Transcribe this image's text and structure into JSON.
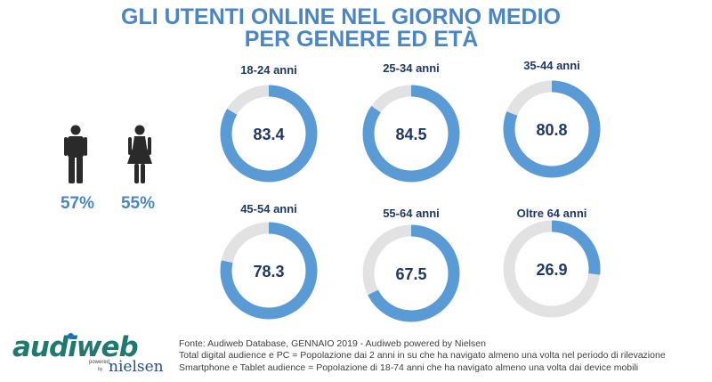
{
  "title_line1": "GLI UTENTI ONLINE NEL GIORNO MEDIO",
  "title_line2": "PER GENERE ED ETÀ",
  "genders": [
    {
      "icon": "male-person-icon",
      "value": "57%"
    },
    {
      "icon": "female-person-icon",
      "value": "55%"
    }
  ],
  "colors": {
    "accent": "#5b9bd5",
    "track": "#e2e2e2",
    "title": "#4a86c6",
    "label": "#1f3864",
    "figure": "#2a2a2a"
  },
  "chart_data": {
    "type": "donut",
    "max": 100,
    "categories": [
      "18-24 anni",
      "25-34 anni",
      "35-44 anni",
      "45-54 anni",
      "55-64 anni",
      "Oltre 64 anni"
    ],
    "values": [
      83.4,
      84.5,
      80.8,
      78.3,
      67.5,
      26.9
    ],
    "value_labels": [
      "83.4",
      "84.5",
      "80.8",
      "78.3",
      "67.5",
      "26.9"
    ]
  },
  "logo": {
    "word": "audiweb",
    "powered": "powered",
    "by": "by",
    "nielsen": "nielsen"
  },
  "source_lines": [
    "Fonte: Audiweb Database, GENNAIO 2019 - Audiweb powered by Nielsen",
    "Total digital audience e PC = Popolazione dai 2 anni in su che ha navigato almeno una volta nel periodo di rilevazione",
    "Smartphone e Tablet audience = Popolazione di 18-74 anni che ha navigato almeno una volta dai device mobili"
  ]
}
